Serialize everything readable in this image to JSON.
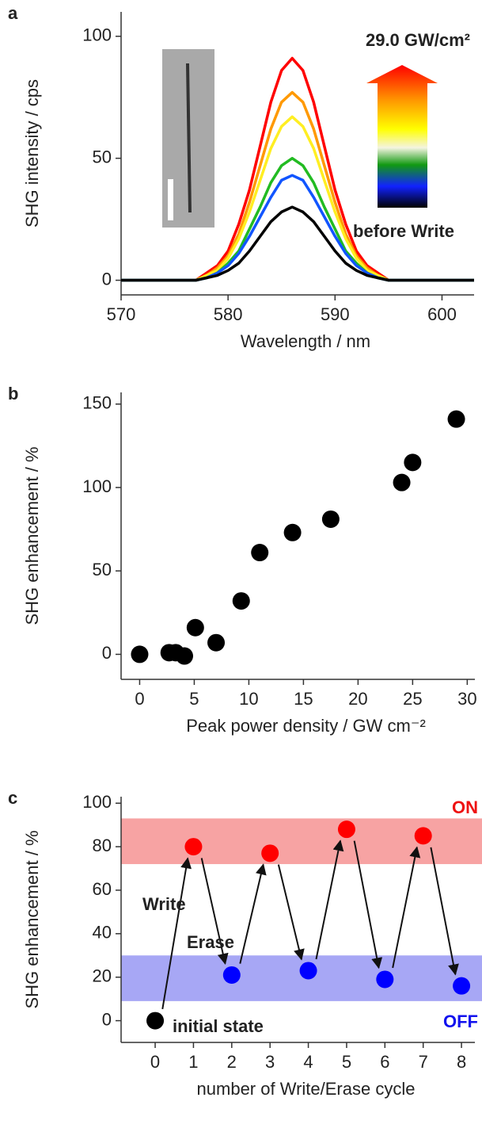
{
  "chart_data": [
    {
      "type": "line",
      "label": "a",
      "xlabel": "Wavelength / nm",
      "ylabel": "SHG intensity / cps",
      "x": [
        570,
        571,
        572,
        573,
        574,
        575,
        576,
        577,
        578,
        579,
        580,
        581,
        582,
        583,
        584,
        585,
        586,
        587,
        588,
        589,
        590,
        591,
        592,
        593,
        594,
        595,
        596,
        597,
        598,
        599,
        600,
        601,
        602,
        603
      ],
      "series": [
        {
          "color": "#ff0000",
          "values": [
            0,
            0,
            0,
            0,
            0,
            0,
            0,
            0,
            3,
            6,
            12,
            23,
            37,
            55,
            73,
            86,
            91,
            86,
            73,
            55,
            37,
            23,
            12,
            6,
            3,
            0,
            0,
            0,
            0,
            0,
            0,
            0,
            0,
            0
          ]
        },
        {
          "color": "#ff9900",
          "values": [
            0,
            0,
            0,
            0,
            0,
            0,
            0,
            0,
            2,
            5,
            10,
            19,
            32,
            47,
            62,
            73,
            77,
            73,
            62,
            47,
            32,
            19,
            10,
            5,
            2,
            0,
            0,
            0,
            0,
            0,
            0,
            0,
            0,
            0
          ]
        },
        {
          "color": "#ffee22",
          "values": [
            0,
            0,
            0,
            0,
            0,
            0,
            0,
            0,
            2,
            4,
            9,
            17,
            28,
            41,
            54,
            63,
            67,
            63,
            54,
            41,
            28,
            17,
            9,
            4,
            2,
            0,
            0,
            0,
            0,
            0,
            0,
            0,
            0,
            0
          ]
        },
        {
          "color": "#22bb22",
          "values": [
            0,
            0,
            0,
            0,
            0,
            0,
            0,
            0,
            1,
            3,
            7,
            12,
            21,
            30,
            40,
            47,
            50,
            47,
            40,
            30,
            21,
            12,
            7,
            3,
            1,
            0,
            0,
            0,
            0,
            0,
            0,
            0,
            0,
            0
          ]
        },
        {
          "color": "#1155ff",
          "values": [
            0,
            0,
            0,
            0,
            0,
            0,
            0,
            0,
            1,
            3,
            6,
            11,
            18,
            26,
            34,
            41,
            43,
            41,
            34,
            26,
            18,
            11,
            6,
            3,
            1,
            0,
            0,
            0,
            0,
            0,
            0,
            0,
            0,
            0
          ]
        },
        {
          "color": "#000000",
          "values": [
            0,
            0,
            0,
            0,
            0,
            0,
            0,
            0,
            1,
            2,
            4,
            7,
            12,
            18,
            24,
            28,
            30,
            28,
            24,
            18,
            12,
            7,
            4,
            2,
            1,
            0,
            0,
            0,
            0,
            0,
            0,
            0,
            0,
            0
          ]
        }
      ],
      "xlim": [
        570,
        603
      ],
      "ylim": [
        -6,
        110
      ],
      "xticks": [
        570,
        580,
        590,
        600
      ],
      "yticks": [
        0,
        50,
        100
      ],
      "annotations": [
        {
          "text": "29.0 GW/cm²"
        },
        {
          "text": "before Write"
        }
      ]
    },
    {
      "type": "scatter",
      "label": "b",
      "xlabel": "Peak power density / GW cm⁻²",
      "ylabel": "SHG enhancement / %",
      "series": [
        {
          "color": "#000000",
          "x": [
            0,
            2.7,
            3.3,
            4.1,
            5.1,
            7,
            9.3,
            11,
            14,
            17.5,
            24,
            25,
            29
          ],
          "values": [
            0,
            1,
            1,
            -1,
            16,
            7,
            32,
            61,
            73,
            81,
            103,
            115,
            141
          ]
        }
      ],
      "xlim": [
        -1.7,
        30.7
      ],
      "ylim": [
        -15,
        157
      ],
      "xticks": [
        0,
        5,
        10,
        15,
        20,
        25,
        30
      ],
      "yticks": [
        0,
        50,
        100,
        150
      ]
    },
    {
      "type": "scatter",
      "label": "c",
      "xlabel": "number of Write/Erase cycle",
      "ylabel": "SHG enhancement / %",
      "bands": [
        {
          "range": [
            72,
            93
          ],
          "color": "#f7a3a3",
          "label": "ON",
          "label_color": "#ee1111"
        },
        {
          "range": [
            9,
            30
          ],
          "color": "#a7a7f5",
          "label": "OFF",
          "label_color": "#1111ee"
        }
      ],
      "series": [
        {
          "color": "#000000",
          "x": [
            0
          ],
          "values": [
            0
          ]
        },
        {
          "color": "#ff0000",
          "x": [
            1,
            3,
            5,
            7
          ],
          "values": [
            80,
            77,
            88,
            85
          ]
        },
        {
          "color": "#0000ff",
          "x": [
            2,
            4,
            6,
            8
          ],
          "values": [
            21,
            23,
            19,
            16
          ]
        }
      ],
      "xlim": [
        -0.89,
        8.35
      ],
      "ylim": [
        -10,
        103
      ],
      "xticks": [
        0,
        1,
        2,
        3,
        4,
        5,
        6,
        7,
        8
      ],
      "yticks": [
        0,
        20,
        40,
        60,
        80,
        100
      ],
      "annotations": [
        {
          "text": "Write"
        },
        {
          "text": "Erase"
        },
        {
          "text": "initial state"
        }
      ]
    }
  ]
}
